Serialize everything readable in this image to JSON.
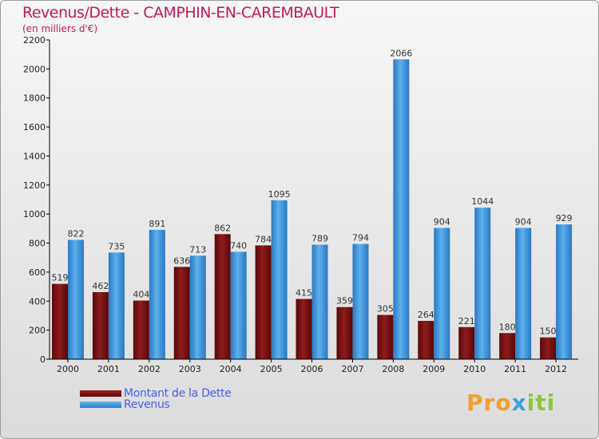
{
  "title": "Revenus/Dette - CAMPHIN-EN-CAREMBAULT",
  "subtitle": "(en milliers d'€)",
  "logo": {
    "part1": "Pro",
    "part2": "x",
    "part3": "iti"
  },
  "colors": {
    "dette": "#7a0c0c",
    "revenus": "#3d94dc",
    "title": "#c2185b",
    "legend_text": "#4a5ee8"
  },
  "chart_data": {
    "type": "bar",
    "title": "Revenus/Dette - CAMPHIN-EN-CAREMBAULT",
    "ylabel": "(en milliers d'€)",
    "xlabel": "",
    "categories": [
      "2000",
      "2001",
      "2002",
      "2003",
      "2004",
      "2005",
      "2006",
      "2007",
      "2008",
      "2009",
      "2010",
      "2011",
      "2012"
    ],
    "series": [
      {
        "name": "Montant de la Dette",
        "color": "#7a0c0c",
        "values": [
          519,
          462,
          404,
          636,
          862,
          784,
          415,
          359,
          305,
          264,
          221,
          180,
          150
        ]
      },
      {
        "name": "Revenus",
        "color": "#3d94dc",
        "values": [
          822,
          735,
          891,
          713,
          740,
          1095,
          789,
          794,
          2066,
          904,
          1044,
          904,
          929
        ]
      }
    ],
    "ylim": [
      0,
      2200
    ],
    "yticks": [
      0,
      200,
      400,
      600,
      800,
      1000,
      1200,
      1400,
      1600,
      1800,
      2000,
      2200
    ],
    "grid": false,
    "legend_position": "bottom-left"
  }
}
